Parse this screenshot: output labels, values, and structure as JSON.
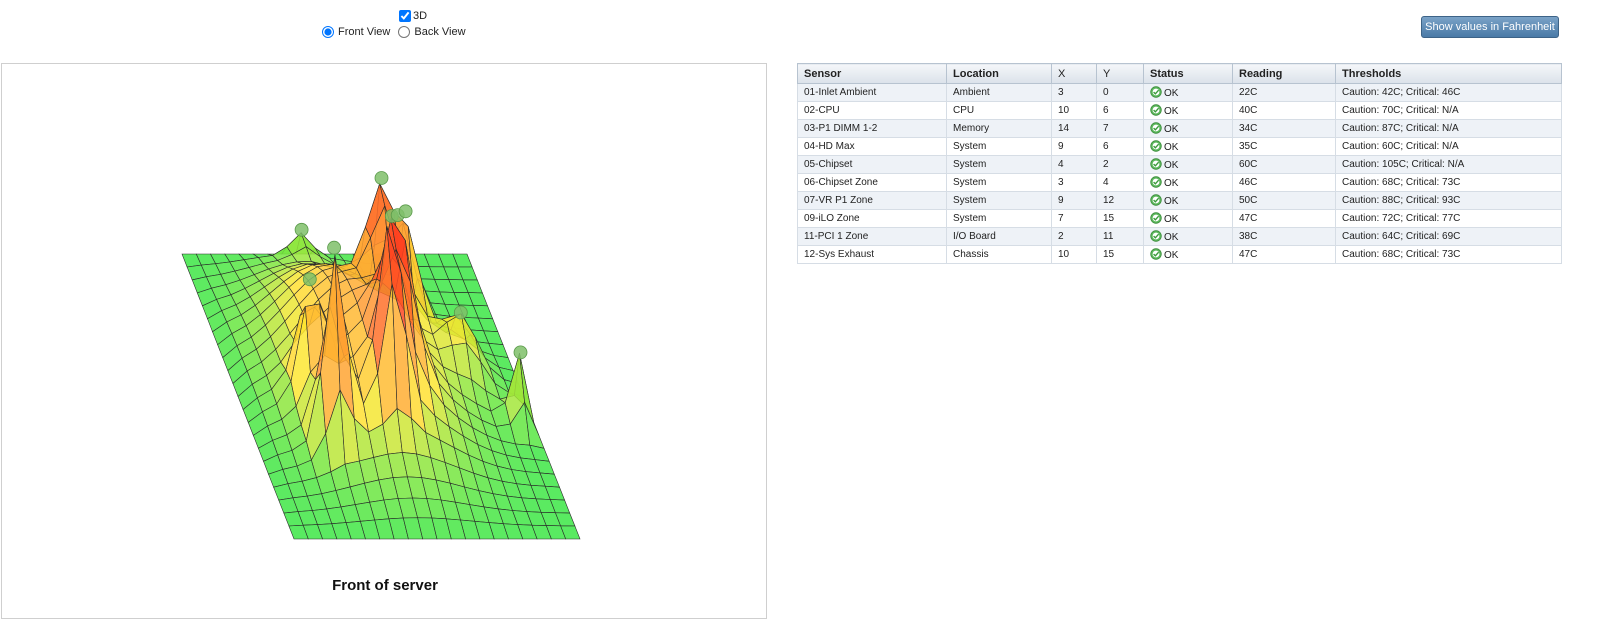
{
  "controls": {
    "three_d_label": "3D",
    "front_view_label": "Front View",
    "back_view_label": "Back View"
  },
  "visualization": {
    "caption": "Front of server"
  },
  "fahrenheit_button": "Show values in Fahrenheit",
  "table": {
    "headers": [
      "Sensor",
      "Location",
      "X",
      "Y",
      "Status",
      "Reading",
      "Thresholds"
    ],
    "rows": [
      {
        "sensor": "01-Inlet Ambient",
        "location": "Ambient",
        "x": "3",
        "y": "0",
        "status": "OK",
        "reading": "22C",
        "thresholds": "Caution: 42C; Critical: 46C"
      },
      {
        "sensor": "02-CPU",
        "location": "CPU",
        "x": "10",
        "y": "6",
        "status": "OK",
        "reading": "40C",
        "thresholds": "Caution: 70C; Critical: N/A"
      },
      {
        "sensor": "03-P1 DIMM 1-2",
        "location": "Memory",
        "x": "14",
        "y": "7",
        "status": "OK",
        "reading": "34C",
        "thresholds": "Caution: 87C; Critical: N/A"
      },
      {
        "sensor": "04-HD Max",
        "location": "System",
        "x": "9",
        "y": "6",
        "status": "OK",
        "reading": "35C",
        "thresholds": "Caution: 60C; Critical: N/A"
      },
      {
        "sensor": "05-Chipset",
        "location": "System",
        "x": "4",
        "y": "2",
        "status": "OK",
        "reading": "60C",
        "thresholds": "Caution: 105C; Critical: N/A"
      },
      {
        "sensor": "06-Chipset Zone",
        "location": "System",
        "x": "3",
        "y": "4",
        "status": "OK",
        "reading": "46C",
        "thresholds": "Caution: 68C; Critical: 73C"
      },
      {
        "sensor": "07-VR P1 Zone",
        "location": "System",
        "x": "9",
        "y": "12",
        "status": "OK",
        "reading": "50C",
        "thresholds": "Caution: 88C; Critical: 93C"
      },
      {
        "sensor": "09-iLO Zone",
        "location": "System",
        "x": "7",
        "y": "15",
        "status": "OK",
        "reading": "47C",
        "thresholds": "Caution: 72C; Critical: 77C"
      },
      {
        "sensor": "11-PCI 1 Zone",
        "location": "I/O Board",
        "x": "2",
        "y": "11",
        "status": "OK",
        "reading": "38C",
        "thresholds": "Caution: 64C; Critical: 69C"
      },
      {
        "sensor": "12-Sys Exhaust",
        "location": "Chassis",
        "x": "10",
        "y": "15",
        "status": "OK",
        "reading": "47C",
        "thresholds": "Caution: 68C; Critical: 73C"
      }
    ]
  },
  "colors": {
    "ok_icon": "#5cb85c",
    "table_border": "#b7c3d0"
  }
}
